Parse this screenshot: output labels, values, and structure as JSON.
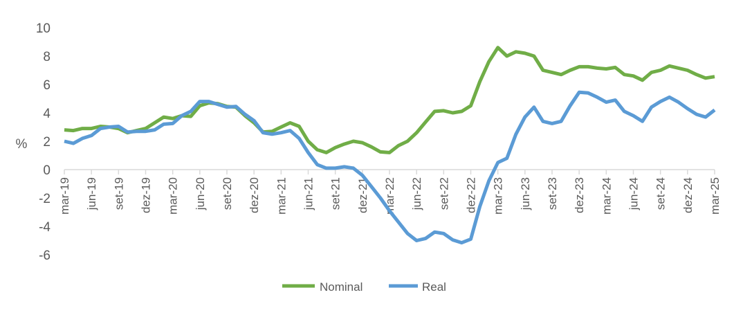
{
  "chart_data": {
    "type": "line",
    "title": "",
    "xlabel": "",
    "ylabel": "%",
    "ylim": [
      -6,
      10
    ],
    "yticks": [
      -6,
      -4,
      -2,
      0,
      2,
      4,
      6,
      8,
      10
    ],
    "grid": false,
    "legend_placement": "bottom",
    "x_start": "mar-19",
    "x_end": "mar-25",
    "x_frequency": "monthly",
    "tick_labels": [
      "mar-19",
      "jun-19",
      "set-19",
      "dez-19",
      "mar-20",
      "jun-20",
      "set-20",
      "dez-20",
      "mar-21",
      "jun-21",
      "set-21",
      "dez-21",
      "mar-22",
      "jun-22",
      "set-22",
      "dez-22",
      "mar-23",
      "jun-23",
      "set-23",
      "dez-23",
      "mar-24",
      "jun-24",
      "set-24",
      "dez-24",
      "mar-25"
    ],
    "series": [
      {
        "name": "Nominal",
        "color": "#70AD47",
        "values": [
          2.8,
          2.75,
          2.9,
          2.9,
          3.05,
          3.0,
          2.9,
          2.6,
          2.75,
          2.9,
          3.3,
          3.7,
          3.6,
          3.8,
          3.75,
          4.5,
          4.7,
          4.65,
          4.45,
          4.4,
          3.8,
          3.3,
          2.65,
          2.7,
          3.0,
          3.3,
          3.05,
          2.0,
          1.4,
          1.2,
          1.55,
          1.8,
          2.0,
          1.9,
          1.6,
          1.25,
          1.2,
          1.7,
          2.0,
          2.6,
          3.35,
          4.1,
          4.15,
          4.0,
          4.1,
          4.5,
          6.2,
          7.6,
          8.6,
          8.0,
          8.3,
          8.2,
          8.0,
          7.0,
          6.85,
          6.7,
          7.0,
          7.25,
          7.25,
          7.15,
          7.1,
          7.2,
          6.7,
          6.6,
          6.3,
          6.85,
          7.0,
          7.3,
          7.15,
          7.0,
          6.7,
          6.45,
          6.55
        ]
      },
      {
        "name": "Real",
        "color": "#5B9BD5",
        "values": [
          2.0,
          1.85,
          2.2,
          2.4,
          2.9,
          3.0,
          3.05,
          2.65,
          2.7,
          2.7,
          2.8,
          3.2,
          3.25,
          3.8,
          4.1,
          4.8,
          4.8,
          4.6,
          4.4,
          4.45,
          3.9,
          3.45,
          2.6,
          2.5,
          2.6,
          2.75,
          2.2,
          1.2,
          0.35,
          0.1,
          0.1,
          0.2,
          0.1,
          -0.4,
          -1.2,
          -2.0,
          -2.9,
          -3.7,
          -4.5,
          -5.0,
          -4.85,
          -4.4,
          -4.5,
          -4.95,
          -5.15,
          -4.9,
          -2.6,
          -0.8,
          0.5,
          0.8,
          2.5,
          3.7,
          4.4,
          3.4,
          3.25,
          3.4,
          4.5,
          5.45,
          5.4,
          5.1,
          4.75,
          4.9,
          4.1,
          3.8,
          3.4,
          4.4,
          4.8,
          5.1,
          4.75,
          4.3,
          3.9,
          3.7,
          4.2
        ]
      }
    ]
  }
}
